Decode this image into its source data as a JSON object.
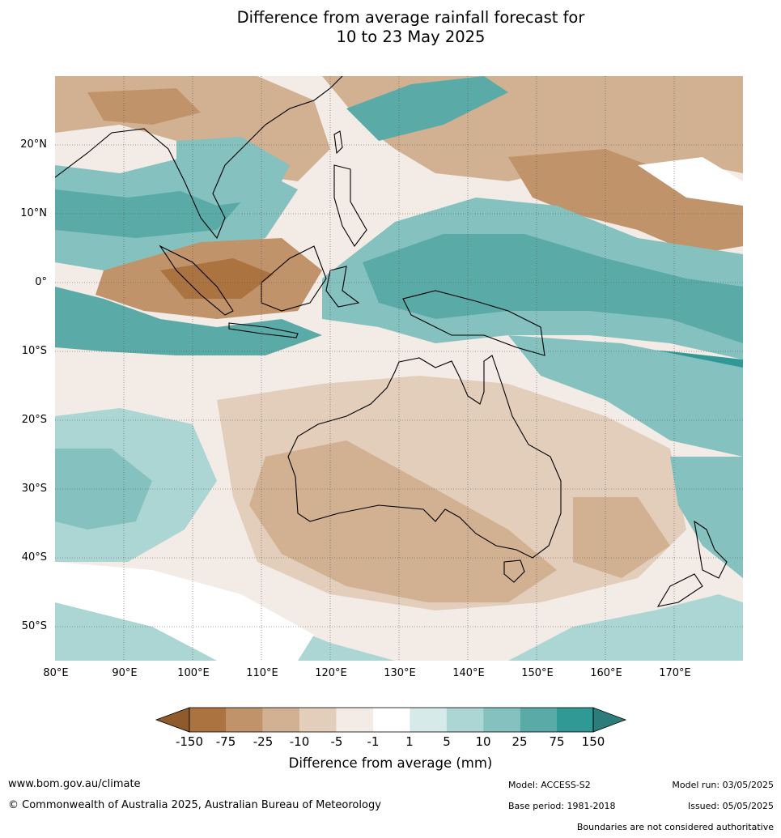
{
  "title": {
    "line1": "Difference from average rainfall forecast for",
    "line2": "10 to 23 May 2025"
  },
  "axes": {
    "lat_labels": [
      "20°N",
      "10°N",
      "0°",
      "10°S",
      "20°S",
      "30°S",
      "40°S",
      "50°S"
    ],
    "lon_labels": [
      "80°E",
      "90°E",
      "100°E",
      "110°E",
      "120°E",
      "130°E",
      "140°E",
      "150°E",
      "160°E",
      "170°E"
    ]
  },
  "colorbar": {
    "title": "Difference from average (mm)",
    "tick_labels": [
      "-150",
      "-75",
      "-25",
      "-10",
      "-5",
      "-1",
      "1",
      "5",
      "10",
      "25",
      "75",
      "150"
    ],
    "colors": [
      "#8f5a2c",
      "#ab733f",
      "#c0936a",
      "#d1b191",
      "#e3cebc",
      "#f3ebe5",
      "#ffffff",
      "#d6eae9",
      "#acd6d3",
      "#84c1bf",
      "#5aaaa8",
      "#309895",
      "#2b7c7a"
    ]
  },
  "footer": {
    "website": "www.bom.gov.au/climate",
    "copyright": "© Commonwealth of Australia 2025, Australian Bureau of Meteorology",
    "model": "Model: ACCESS-S2",
    "base_period": "Base period: 1981-2018",
    "model_run": "Model run: 03/05/2025",
    "issued": "Issued: 05/05/2025",
    "disclaimer": "Boundaries are not considered authoritative"
  }
}
